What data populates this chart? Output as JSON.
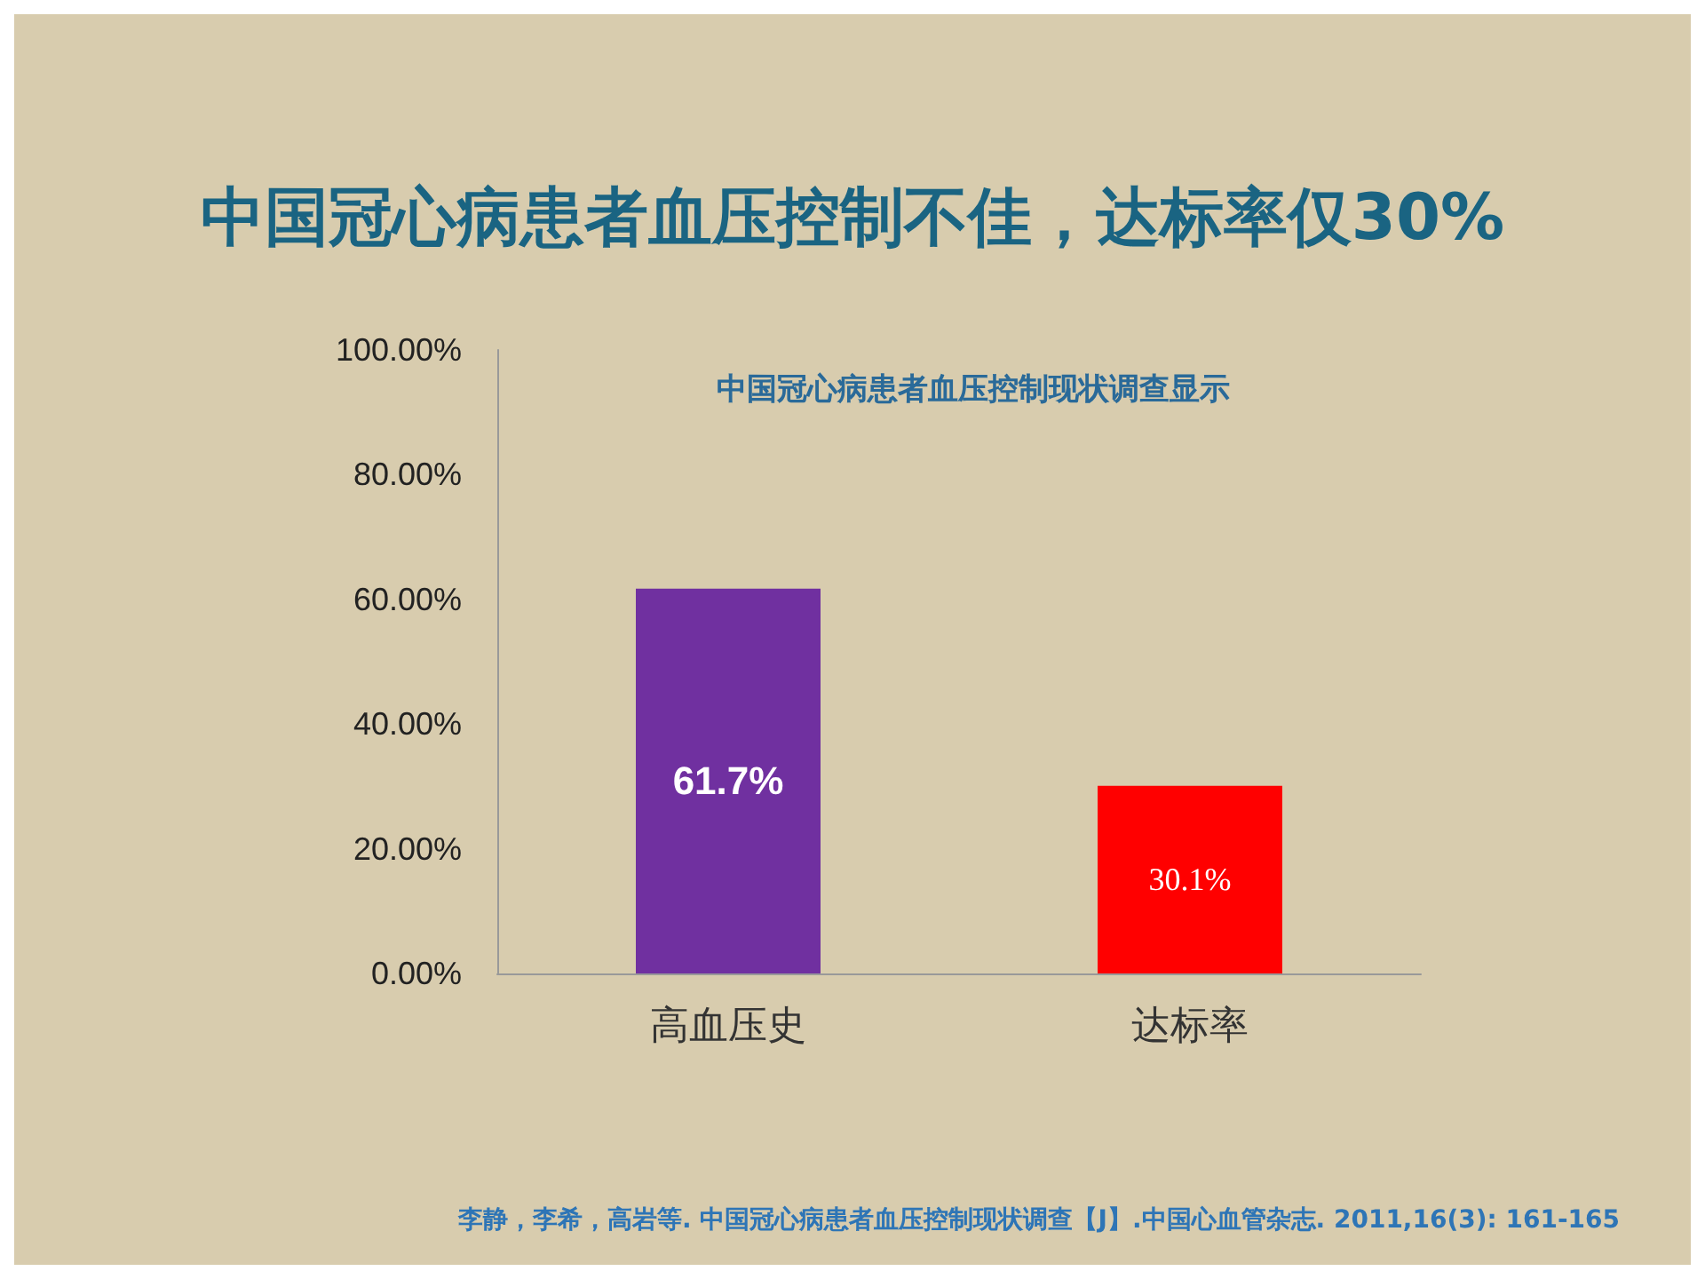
{
  "chart_data": {
    "type": "bar",
    "title": "中国冠心病患者血压控制不佳，达标率仅30%",
    "subtitle": "中国冠心病患者血压控制现状调查显示",
    "categories": [
      "高血压史",
      "达标率"
    ],
    "values": [
      61.7,
      30.1
    ],
    "colors": [
      "#7030a0",
      "#ff0000"
    ],
    "value_labels": [
      "61.7%",
      "30.1%"
    ],
    "ylim": [
      0,
      100
    ],
    "yticks": [
      {
        "value": 0,
        "label": "0.00%"
      },
      {
        "value": 20,
        "label": "20.00%"
      },
      {
        "value": 40,
        "label": "40.00%"
      },
      {
        "value": 60,
        "label": "60.00%"
      },
      {
        "value": 80,
        "label": "80.00%"
      },
      {
        "value": 100,
        "label": "100.00%"
      }
    ],
    "grid": false,
    "annotations": [
      "李静，李希，高岩等. 中国冠心病患者血压控制现状调查【J】.中国心血管杂志. 2011,16(3): 161-165"
    ]
  }
}
